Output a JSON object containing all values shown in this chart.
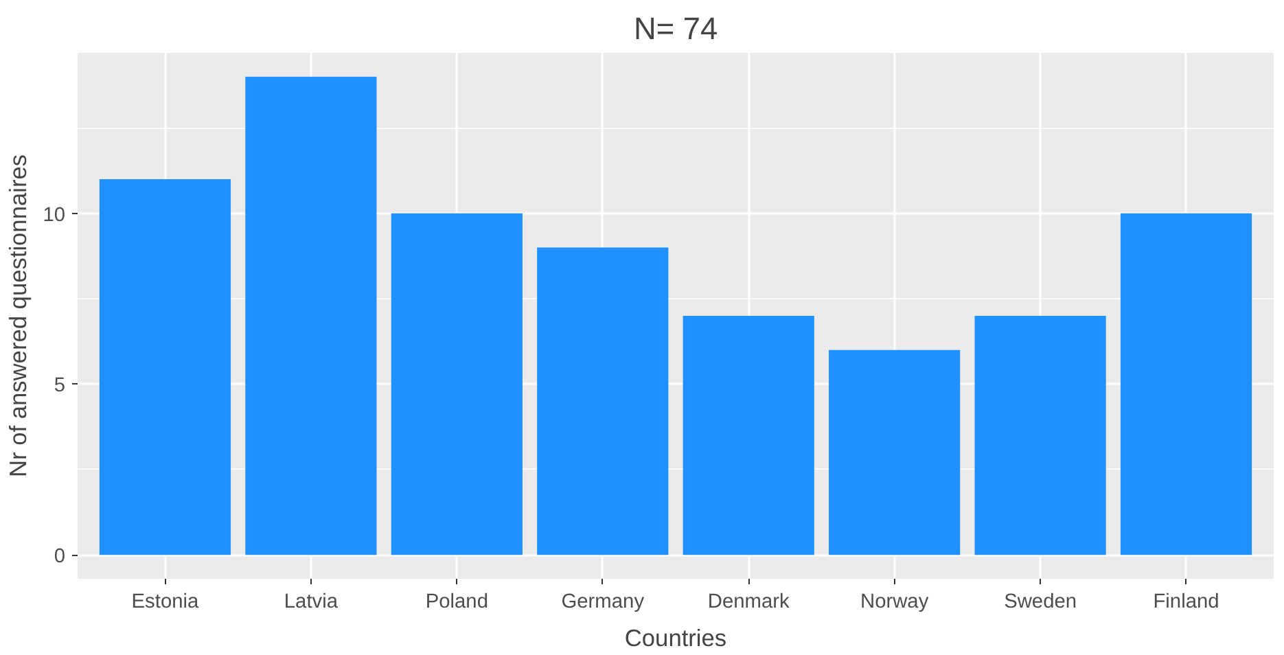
{
  "chart_data": {
    "type": "bar",
    "title": "N= 74",
    "xlabel": "Countries",
    "ylabel": "Nr of answered questionnaires",
    "categories": [
      "Estonia",
      "Latvia",
      "Poland",
      "Germany",
      "Denmark",
      "Norway",
      "Sweden",
      "Finland"
    ],
    "values": [
      11,
      14,
      10,
      9,
      7,
      6,
      7,
      10
    ],
    "color": "#1e90ff",
    "ylim": [
      -0.7,
      14.7
    ],
    "yticks": [
      0,
      5,
      10
    ],
    "grid": true
  }
}
